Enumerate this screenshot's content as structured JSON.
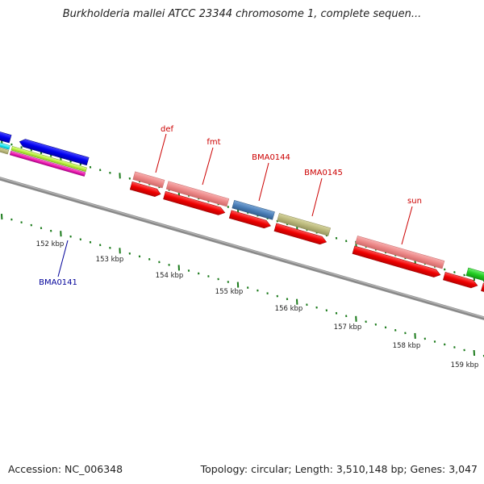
{
  "title": "Burkholderia mallei ATCC 23344 chromosome 1, complete sequen...",
  "footer": {
    "accession": "Accession: NC_006348",
    "summary": "Topology: circular; Length: 3,510,148 bp; Genes: 3,047"
  },
  "colors": {
    "backbone": "#888888",
    "tick": "#1a7a1a",
    "label_red": "#cc0000",
    "label_blue": "#000099"
  },
  "axis_labels": [
    "152 kbp",
    "153 kbp",
    "154 kbp",
    "155 kbp",
    "156 kbp",
    "157 kbp",
    "158 kbp",
    "159 kbp"
  ],
  "gene_labels": [
    {
      "text": "def",
      "color": "#cc0000"
    },
    {
      "text": "fmt",
      "color": "#cc0000"
    },
    {
      "text": "BMA0144",
      "color": "#cc0000"
    },
    {
      "text": "BMA0145",
      "color": "#cc0000"
    },
    {
      "text": "sun",
      "color": "#cc0000"
    },
    {
      "text": "BMA0141",
      "color": "#000099"
    }
  ]
}
